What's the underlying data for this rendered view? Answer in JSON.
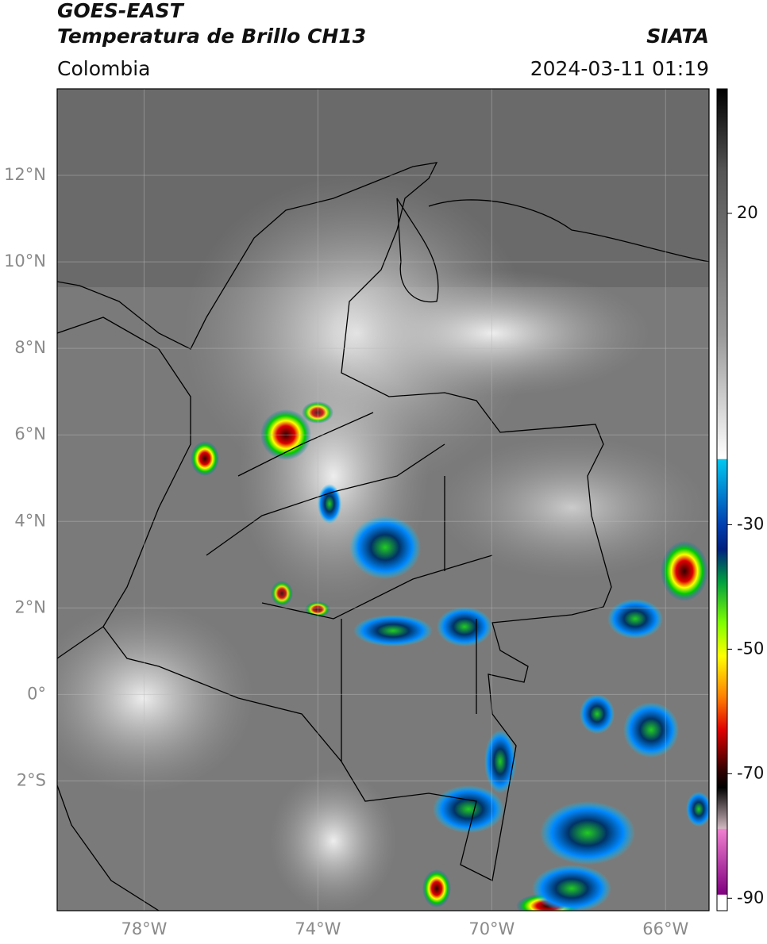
{
  "header": {
    "title": "GOES-EAST",
    "subtitle": "Temperatura de Brillo CH13",
    "source": "SIATA",
    "region": "Colombia",
    "datetime": "2024-03-11 01:19"
  },
  "map": {
    "xlim": [
      -80,
      -65
    ],
    "ylim": [
      -5,
      14
    ],
    "xticks": [
      {
        "value": -78,
        "label": "78°W"
      },
      {
        "value": -74,
        "label": "74°W"
      },
      {
        "value": -70,
        "label": "70°W"
      },
      {
        "value": -66,
        "label": "66°W"
      }
    ],
    "yticks": [
      {
        "value": 12,
        "label": "12°N"
      },
      {
        "value": 10,
        "label": "10°N"
      },
      {
        "value": 8,
        "label": "8°N"
      },
      {
        "value": 6,
        "label": "6°N"
      },
      {
        "value": 4,
        "label": "4°N"
      },
      {
        "value": 2,
        "label": "2°N"
      },
      {
        "value": 0,
        "label": "0°"
      },
      {
        "value": -2,
        "label": "2°S"
      }
    ],
    "grid": true
  },
  "colorbar": {
    "lim": [
      -92,
      40
    ],
    "ticks": [
      20,
      -30,
      -50,
      -70,
      -90
    ]
  }
}
